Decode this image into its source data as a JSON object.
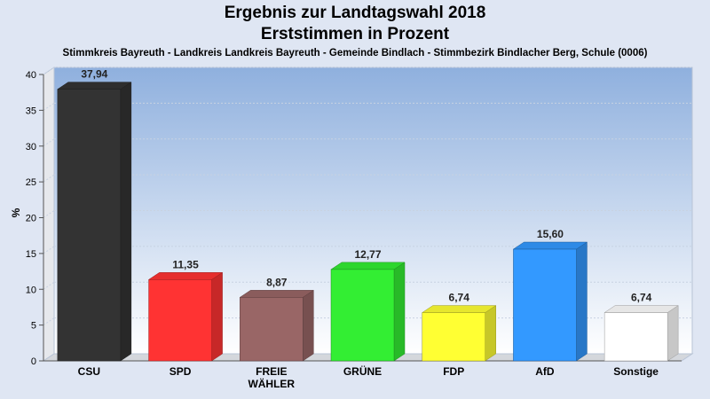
{
  "chart_data": {
    "type": "bar",
    "title": "Ergebnis zur Landtagswahl 2018",
    "subtitle": "Erststimmen in Prozent",
    "caption": "Stimmkreis Bayreuth - Landkreis Landkreis Bayreuth - Gemeinde Bindlach - Stimmbezirk Bindlacher Berg, Schule (0006)",
    "ylabel": "%",
    "ylim": [
      0,
      40
    ],
    "yticks": [
      0,
      5,
      10,
      15,
      20,
      25,
      30,
      35,
      40
    ],
    "grid": true,
    "categories": [
      "CSU",
      "SPD",
      "FREIE\nWÄHLER",
      "GRÜNE",
      "FDP",
      "AfD",
      "Sonstige"
    ],
    "values": [
      37.94,
      11.35,
      8.87,
      12.77,
      6.74,
      15.6,
      6.74
    ],
    "value_labels": [
      "37,94",
      "11,35",
      "8,87",
      "12,77",
      "6,74",
      "15,60",
      "6,74"
    ],
    "colors": [
      "#333333",
      "#ff3333",
      "#996666",
      "#33ee33",
      "#ffff33",
      "#3399ff",
      "#ffffff"
    ]
  }
}
